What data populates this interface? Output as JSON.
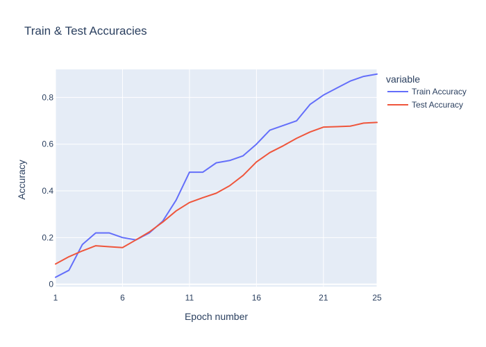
{
  "chart_data": {
    "type": "line",
    "title": "Train & Test Accuracies",
    "xlabel": "Epoch number",
    "ylabel": "Accuracy",
    "xlim": [
      1,
      25
    ],
    "ylim": [
      -0.01,
      0.92
    ],
    "xticks": [
      1,
      6,
      11,
      16,
      21,
      25
    ],
    "yticks": [
      0,
      0.2,
      0.4,
      0.6,
      0.8
    ],
    "ytick_labels": [
      "0",
      "0.2",
      "0.4",
      "0.6",
      "0.8"
    ],
    "grid": true,
    "legend_title": "variable",
    "legend_position": "top-right-outside",
    "x": [
      1,
      2,
      3,
      4,
      5,
      6,
      7,
      8,
      9,
      10,
      11,
      12,
      13,
      14,
      15,
      16,
      17,
      18,
      19,
      20,
      21,
      22,
      23,
      24,
      25
    ],
    "series": [
      {
        "name": "Train Accuracy",
        "color": "#636efa",
        "values": [
          0.03,
          0.06,
          0.17,
          0.22,
          0.22,
          0.2,
          0.19,
          0.22,
          0.27,
          0.36,
          0.48,
          0.48,
          0.52,
          0.53,
          0.55,
          0.6,
          0.66,
          0.68,
          0.7,
          0.77,
          0.81,
          0.84,
          0.87,
          0.89,
          0.9
        ]
      },
      {
        "name": "Test Accuracy",
        "color": "#ef553b",
        "values": [
          0.087,
          0.118,
          0.143,
          0.165,
          0.161,
          0.157,
          0.19,
          0.224,
          0.266,
          0.314,
          0.35,
          0.371,
          0.39,
          0.422,
          0.466,
          0.524,
          0.564,
          0.593,
          0.625,
          0.652,
          0.673,
          0.675,
          0.677,
          0.69,
          0.693
        ]
      }
    ]
  }
}
